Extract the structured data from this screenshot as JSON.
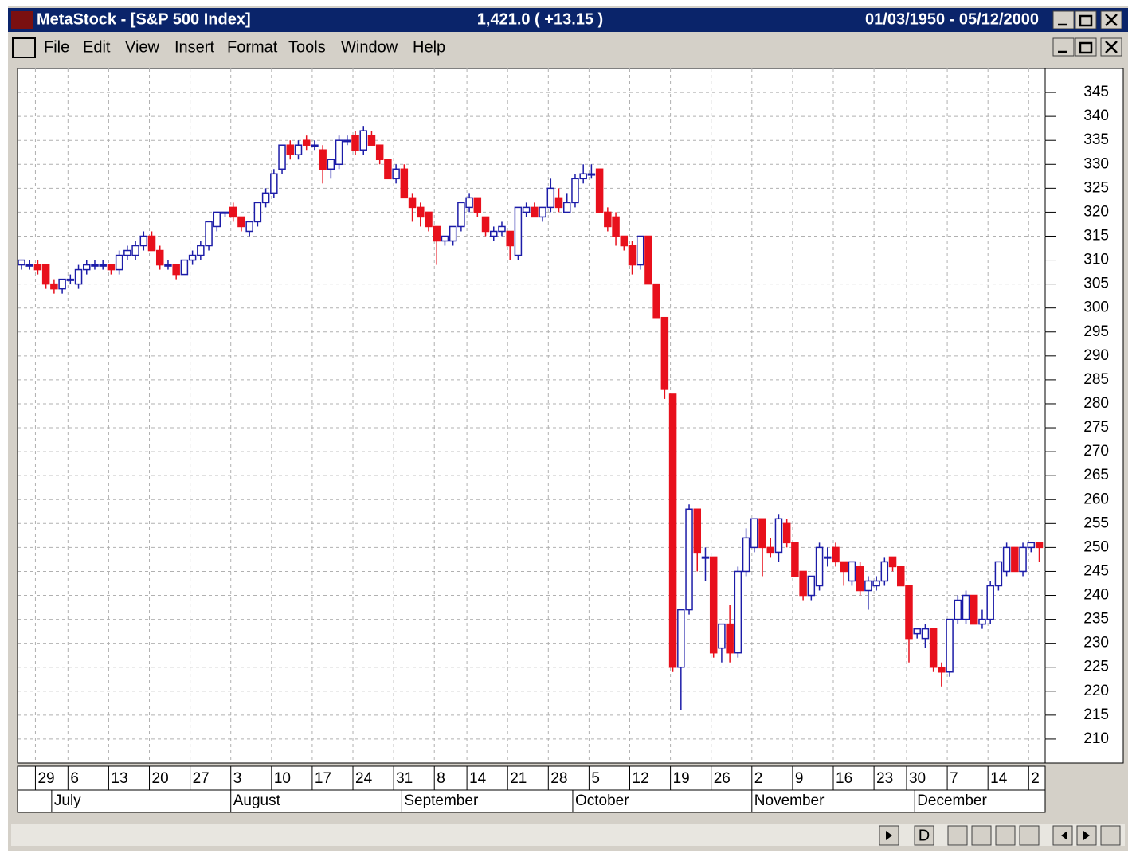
{
  "window": {
    "title": "MetaStock - [S&P 500 Index]",
    "price": "1,421.0 ( +13.15 )",
    "range": "01/03/1950 - 05/12/2000",
    "menu": [
      "File",
      "Edit",
      "View",
      "Insert",
      "Format",
      "Tools",
      "Window",
      "Help"
    ],
    "scroll_button": "D"
  },
  "chart_data": {
    "type": "candlestick",
    "up_color": "#1c1ca8",
    "down_color": "#e8101c",
    "grid": true,
    "open": [
      309,
      309,
      309,
      309,
      305,
      304,
      306,
      305,
      308,
      309,
      309,
      309,
      308,
      311,
      311,
      313,
      315,
      312,
      309,
      309,
      307,
      310,
      311,
      313,
      317,
      320,
      321,
      319,
      316,
      318,
      322,
      324,
      329,
      334,
      332,
      335,
      334,
      333,
      329,
      330,
      335,
      336,
      333,
      336,
      334,
      331,
      327,
      329,
      323,
      321,
      320,
      317,
      314,
      314,
      317,
      321,
      323,
      319,
      315,
      316,
      316,
      311,
      320,
      321,
      319,
      321,
      323,
      320,
      322,
      327,
      328,
      329,
      320,
      319,
      315,
      313,
      309,
      315,
      305,
      298,
      282,
      225,
      237,
      258,
      248,
      248,
      229,
      234,
      228,
      245,
      250,
      256,
      250,
      249,
      255,
      251,
      245,
      240,
      242,
      248,
      250,
      247,
      243,
      246,
      241,
      242,
      243,
      248,
      246,
      242,
      232,
      231,
      233,
      225,
      224,
      235,
      235,
      240,
      234,
      235,
      242,
      245,
      250,
      245,
      250,
      251
    ],
    "high": [
      310,
      310,
      310,
      309,
      306,
      306,
      307,
      309,
      310,
      310,
      310,
      309,
      312,
      313,
      314,
      316,
      316,
      313,
      310,
      309,
      310,
      312,
      314,
      318,
      320,
      320,
      322,
      319,
      318,
      322,
      325,
      329,
      334,
      335,
      335,
      336,
      335,
      334,
      331,
      336,
      336,
      337,
      338,
      337,
      334,
      331,
      330,
      330,
      324,
      322,
      320,
      317,
      315,
      317,
      322,
      324,
      323,
      319,
      317,
      318,
      316,
      321,
      322,
      322,
      321,
      327,
      325,
      324,
      328,
      330,
      330,
      329,
      321,
      320,
      315,
      314,
      315,
      315,
      305,
      298,
      282,
      237,
      259,
      258,
      250,
      248,
      234,
      238,
      246,
      254,
      256,
      256,
      252,
      257,
      256,
      251,
      245,
      244,
      251,
      250,
      251,
      247,
      247,
      247,
      244,
      244,
      248,
      248,
      246,
      242,
      233,
      234,
      233,
      226,
      235,
      240,
      241,
      240,
      237,
      243,
      247,
      251,
      250,
      251,
      251,
      251
    ],
    "low": [
      308,
      308,
      307,
      304,
      303,
      303,
      305,
      304,
      307,
      308,
      308,
      307,
      307,
      310,
      310,
      312,
      312,
      308,
      308,
      306,
      307,
      309,
      310,
      312,
      316,
      319,
      318,
      316,
      315,
      317,
      321,
      323,
      328,
      331,
      331,
      333,
      333,
      326,
      327,
      329,
      334,
      332,
      332,
      334,
      330,
      327,
      326,
      323,
      318,
      317,
      316,
      309,
      313,
      313,
      316,
      320,
      319,
      315,
      314,
      315,
      310,
      310,
      319,
      319,
      318,
      320,
      320,
      320,
      321,
      326,
      327,
      320,
      316,
      313,
      312,
      307,
      308,
      305,
      298,
      281,
      224,
      216,
      236,
      245,
      243,
      227,
      226,
      226,
      227,
      244,
      249,
      244,
      248,
      247,
      250,
      244,
      239,
      239,
      241,
      246,
      246,
      242,
      242,
      240,
      237,
      241,
      242,
      245,
      242,
      226,
      231,
      229,
      224,
      221,
      223,
      234,
      234,
      234,
      233,
      234,
      241,
      244,
      245,
      244,
      249,
      247
    ],
    "close": [
      310,
      309,
      308,
      305,
      304,
      306,
      306,
      308,
      309,
      309,
      309,
      308,
      311,
      312,
      313,
      315,
      312,
      309,
      309,
      307,
      310,
      311,
      313,
      318,
      320,
      320,
      319,
      317,
      318,
      322,
      324,
      328,
      334,
      332,
      334,
      334,
      334,
      329,
      331,
      335,
      335,
      333,
      337,
      334,
      331,
      327,
      329,
      323,
      321,
      319,
      317,
      314,
      315,
      317,
      322,
      323,
      320,
      316,
      316,
      317,
      313,
      321,
      321,
      319,
      321,
      325,
      321,
      322,
      327,
      328,
      328,
      320,
      317,
      315,
      313,
      309,
      315,
      305,
      298,
      283,
      225,
      237,
      258,
      249,
      248,
      228,
      234,
      228,
      245,
      252,
      256,
      250,
      249,
      256,
      251,
      244,
      240,
      244,
      250,
      248,
      247,
      245,
      247,
      241,
      243,
      243,
      247,
      246,
      242,
      231,
      233,
      233,
      225,
      224,
      235,
      239,
      240,
      234,
      235,
      242,
      247,
      250,
      245,
      250,
      251,
      250
    ],
    "ylim": [
      205,
      350
    ],
    "yticks": [
      210,
      215,
      220,
      225,
      230,
      235,
      240,
      245,
      250,
      255,
      260,
      265,
      270,
      275,
      280,
      285,
      290,
      295,
      300,
      305,
      310,
      315,
      320,
      325,
      330,
      335,
      340,
      345
    ],
    "xticks": [
      {
        "value": 2,
        "label": "29"
      },
      {
        "value": 6,
        "label": "6"
      },
      {
        "value": 11,
        "label": "13"
      },
      {
        "value": 16,
        "label": "20"
      },
      {
        "value": 21,
        "label": "27"
      },
      {
        "value": 26,
        "label": "3"
      },
      {
        "value": 31,
        "label": "10"
      },
      {
        "value": 36,
        "label": "17"
      },
      {
        "value": 41,
        "label": "24"
      },
      {
        "value": 46,
        "label": "31"
      },
      {
        "value": 51,
        "label": "8"
      },
      {
        "value": 55,
        "label": "14"
      },
      {
        "value": 60,
        "label": "21"
      },
      {
        "value": 65,
        "label": "28"
      },
      {
        "value": 70,
        "label": "5"
      },
      {
        "value": 75,
        "label": "12"
      },
      {
        "value": 80,
        "label": "19"
      },
      {
        "value": 85,
        "label": "26"
      },
      {
        "value": 90,
        "label": "2"
      },
      {
        "value": 95,
        "label": "9"
      },
      {
        "value": 100,
        "label": "16"
      },
      {
        "value": 105,
        "label": "23"
      },
      {
        "value": 109,
        "label": "30"
      },
      {
        "value": 114,
        "label": "7"
      },
      {
        "value": 119,
        "label": "14"
      },
      {
        "value": 124,
        "label": "2"
      }
    ],
    "months": [
      {
        "value": 4,
        "label": "July"
      },
      {
        "value": 26,
        "label": "August"
      },
      {
        "value": 47,
        "label": "September"
      },
      {
        "value": 68,
        "label": "October"
      },
      {
        "value": 90,
        "label": "November"
      },
      {
        "value": 110,
        "label": "December"
      }
    ]
  }
}
